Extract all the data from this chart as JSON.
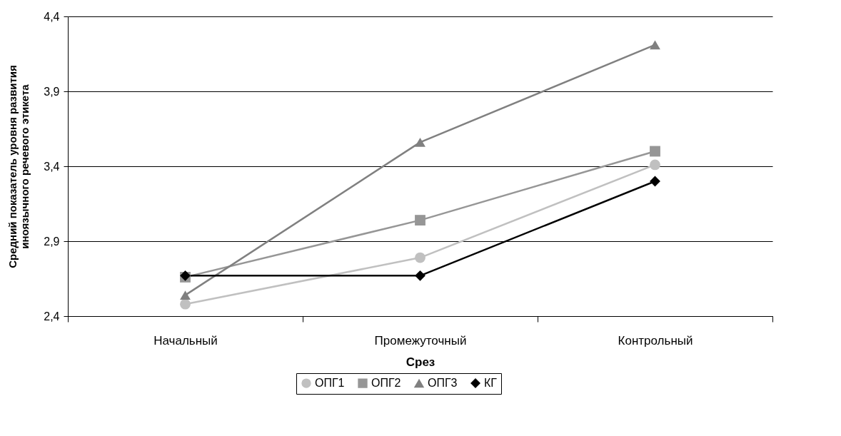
{
  "chart_data": {
    "type": "line",
    "xlabel": "Срез",
    "ylabel": "Средний показатель уровня развития иноязычного речевого этикета",
    "categories": [
      "Начальный",
      "Промежуточный",
      "Контрольный"
    ],
    "series": [
      {
        "name": "ОПГ1",
        "color": "#c0c0c0",
        "marker": "circle",
        "values": [
          2.48,
          2.79,
          3.41
        ]
      },
      {
        "name": "ОПГ2",
        "color": "#969696",
        "marker": "square",
        "values": [
          2.66,
          3.04,
          3.5
        ]
      },
      {
        "name": "ОПГ3",
        "color": "#808080",
        "marker": "triangle",
        "values": [
          2.54,
          3.56,
          4.21
        ]
      },
      {
        "name": "КГ",
        "color": "#000000",
        "marker": "diamond",
        "values": [
          2.67,
          2.67,
          3.3
        ]
      }
    ],
    "ylim": [
      2.4,
      4.4
    ],
    "yticks": [
      {
        "value": 2.4,
        "label": "2,4"
      },
      {
        "value": 2.9,
        "label": "2,9"
      },
      {
        "value": 3.4,
        "label": "3,4"
      },
      {
        "value": 3.9,
        "label": "3,9"
      },
      {
        "value": 4.4,
        "label": "4,4"
      }
    ],
    "grid": "y",
    "legend": "bottom"
  }
}
